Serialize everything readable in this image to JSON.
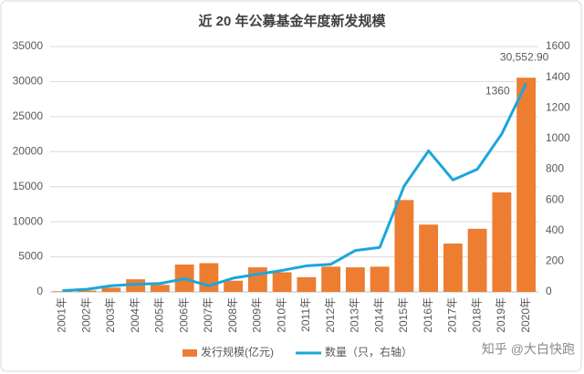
{
  "chart_data": {
    "type": "bar-line",
    "title": "近 20 年公募基金年度新发规模",
    "categories": [
      "2001年",
      "2002年",
      "2003年",
      "2004年",
      "2005年",
      "2006年",
      "2007年",
      "2008年",
      "2009年",
      "2010年",
      "2011年",
      "2012年",
      "2013年",
      "2014年",
      "2015年",
      "2016年",
      "2017年",
      "2018年",
      "2019年",
      "2020年"
    ],
    "series": [
      {
        "name": "发行规模(亿元)",
        "type": "bar",
        "color": "#ed7d31",
        "values": [
          100,
          200,
          600,
          1800,
          1000,
          3900,
          4100,
          1600,
          3500,
          2800,
          2100,
          3600,
          3500,
          3600,
          13100,
          9600,
          6900,
          9000,
          14200,
          30552.9
        ],
        "value_labels": [
          null,
          null,
          null,
          null,
          null,
          null,
          null,
          null,
          null,
          null,
          null,
          null,
          null,
          null,
          null,
          null,
          null,
          null,
          null,
          "30,552.90"
        ]
      },
      {
        "name": "数量（只，右轴）",
        "type": "line",
        "axis": "y2",
        "color": "#1ba6dc",
        "values": [
          8,
          17,
          40,
          50,
          55,
          85,
          40,
          90,
          115,
          140,
          170,
          180,
          270,
          290,
          690,
          920,
          730,
          800,
          1030,
          1360
        ],
        "value_labels": [
          null,
          null,
          null,
          null,
          null,
          null,
          null,
          null,
          null,
          null,
          null,
          null,
          null,
          null,
          null,
          null,
          null,
          null,
          null,
          "1360"
        ]
      }
    ],
    "ylim": [
      0,
      35000
    ],
    "yticks": [
      0,
      5000,
      10000,
      15000,
      20000,
      25000,
      30000,
      35000
    ],
    "y2lim": [
      0,
      1600
    ],
    "y2ticks": [
      0,
      200,
      400,
      600,
      800,
      1000,
      1200,
      1400,
      1600
    ],
    "grid": true,
    "legend": "bottom",
    "watermark": "知乎 @大白快跑"
  }
}
